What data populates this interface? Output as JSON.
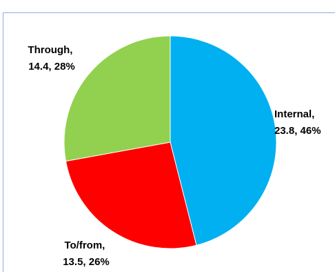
{
  "chart_data": {
    "type": "pie",
    "title": "",
    "slices": [
      {
        "label": "Internal",
        "value": 23.8,
        "percent": "46%",
        "color": "#00b0f0",
        "label_line1": "Internal,",
        "label_line2": "23.8, 46%"
      },
      {
        "label": "To/from",
        "value": 13.5,
        "percent": "26%",
        "color": "#ff0000",
        "label_line1": "To/from,",
        "label_line2": "13.5, 26%"
      },
      {
        "label": "Through",
        "value": 14.4,
        "percent": "28%",
        "color": "#92d050",
        "label_line1": "Through,",
        "label_line2": "14.4, 28%"
      }
    ],
    "start_angle_deg": 0,
    "direction": "clockwise",
    "legend": "none",
    "data_labels": "outside"
  }
}
